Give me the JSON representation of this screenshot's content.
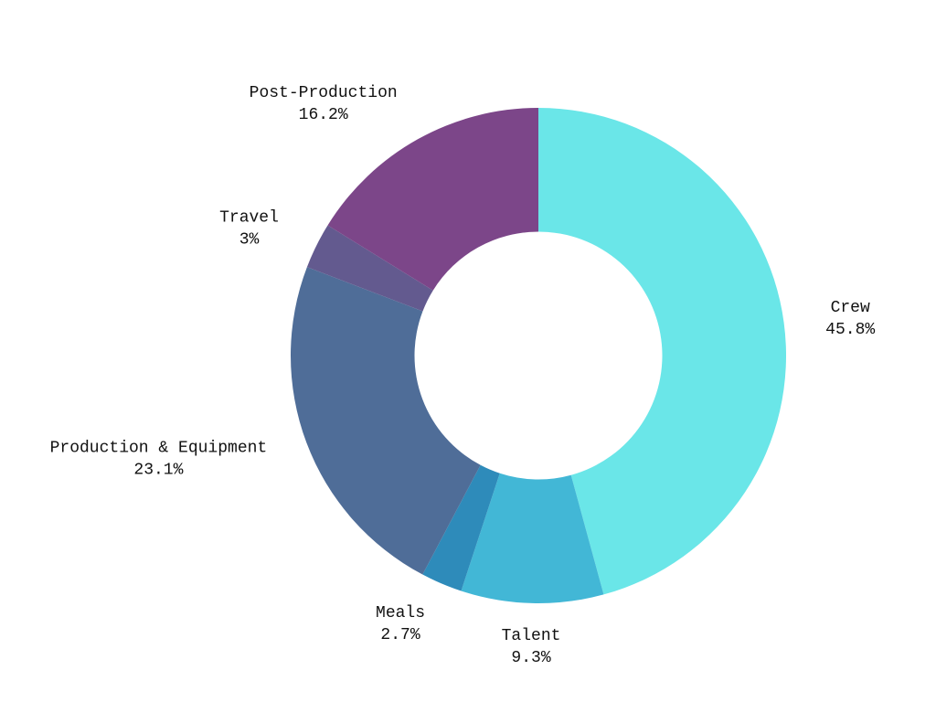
{
  "chart_data": {
    "type": "pie",
    "hole": 0.5,
    "direction": "clockwise",
    "start_angle_deg": 0,
    "title": "",
    "slices": [
      {
        "label": "Crew",
        "value": 45.8,
        "value_label": "45.8%",
        "color": "#6ae6e8"
      },
      {
        "label": "Talent",
        "value": 9.3,
        "value_label": "9.3%",
        "color": "#42b7d6"
      },
      {
        "label": "Meals",
        "value": 2.7,
        "value_label": "2.7%",
        "color": "#2e8bba"
      },
      {
        "label": "Production & Equipment",
        "value": 23.1,
        "value_label": "23.1%",
        "color": "#4f6d98"
      },
      {
        "label": "Travel",
        "value": 3.0,
        "value_label": "3%",
        "color": "#635a8f"
      },
      {
        "label": "Post-Production",
        "value": 16.2,
        "value_label": "16.2%",
        "color": "#7c4689"
      }
    ]
  }
}
